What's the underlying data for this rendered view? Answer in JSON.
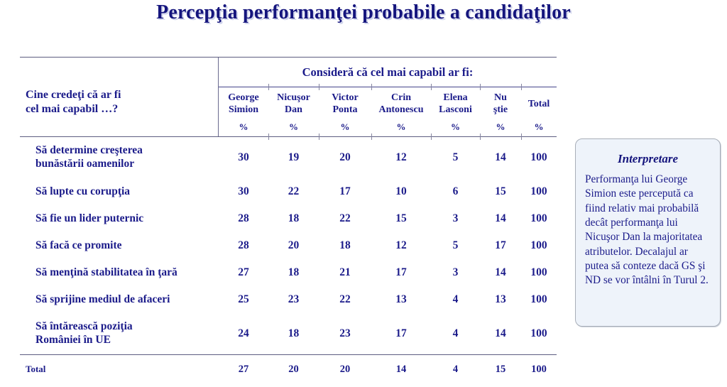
{
  "page": {
    "title": "Percepţia performanţei probabile a candidaţilor"
  },
  "chart_data": {
    "type": "table",
    "title": "Percepţia performanţei probabile a candidaţilor",
    "row_header": {
      "line1": "Cine credeţi că ar fi",
      "line2": "cel mai capabil …?"
    },
    "column_group_header": "Consideră că cel mai capabil ar fi:",
    "unit": "%",
    "columns": [
      {
        "name": "George Simion",
        "line1": "George",
        "line2": "Simion"
      },
      {
        "name": "Nicuşor Dan",
        "line1": "Nicuşor",
        "line2": "Dan"
      },
      {
        "name": "Victor Ponta",
        "line1": "Victor",
        "line2": "Ponta"
      },
      {
        "name": "Crin Antonescu",
        "line1": "Crin",
        "line2": "Antonescu"
      },
      {
        "name": "Elena Lasconi",
        "line1": "Elena",
        "line2": "Lasconi"
      },
      {
        "name": "Nu ştie",
        "line1": "Nu",
        "line2": "ştie"
      },
      {
        "name": "Total",
        "line1": "Total",
        "line2": ""
      }
    ],
    "rows": [
      {
        "label": "Să determine creşterea bunăstării oamenilor",
        "line1": "Să determine creşterea",
        "line2": "bunăstării oamenilor",
        "values": [
          30,
          19,
          20,
          12,
          5,
          14,
          100
        ]
      },
      {
        "label": "Să lupte cu corupţia",
        "line1": "Să lupte cu corupţia",
        "line2": "",
        "values": [
          30,
          22,
          17,
          10,
          6,
          15,
          100
        ]
      },
      {
        "label": "Să fie un lider puternic",
        "line1": "Să fie un lider puternic",
        "line2": "",
        "values": [
          28,
          18,
          22,
          15,
          3,
          14,
          100
        ]
      },
      {
        "label": "Să facă ce promite",
        "line1": "Să facă ce promite",
        "line2": "",
        "values": [
          28,
          20,
          18,
          12,
          5,
          17,
          100
        ]
      },
      {
        "label": "Să menţină stabilitatea în ţară",
        "line1": "Să menţină stabilitatea în ţară",
        "line2": "",
        "values": [
          27,
          18,
          21,
          17,
          3,
          14,
          100
        ]
      },
      {
        "label": "Să sprijine mediul de afaceri",
        "line1": "Să sprijine mediul de afaceri",
        "line2": "",
        "values": [
          25,
          23,
          22,
          13,
          4,
          13,
          100
        ]
      },
      {
        "label": "Să întărească poziţia României în UE",
        "line1": "Să întărească poziţia",
        "line2": "României în UE",
        "values": [
          24,
          18,
          23,
          17,
          4,
          14,
          100
        ]
      }
    ],
    "total_row": {
      "label": "Total",
      "values": [
        27,
        20,
        20,
        14,
        4,
        15,
        100
      ]
    }
  },
  "interpretation": {
    "heading": "Interpretare",
    "body": "Performanţa lui George Simion este percepută ca fiind relativ mai probabilă decât performanţa lui Nicuşor Dan la majoritatea atributelor. Decalajul ar putea să conteze dacă GS şi ND se vor întâlni în Turul 2."
  },
  "colors": {
    "text_navy": "#1b1b8a",
    "title_navy": "#15157d",
    "rule_gray": "#5c5c80",
    "box_background": "#eef3fa",
    "box_border": "#a8aeb8"
  }
}
